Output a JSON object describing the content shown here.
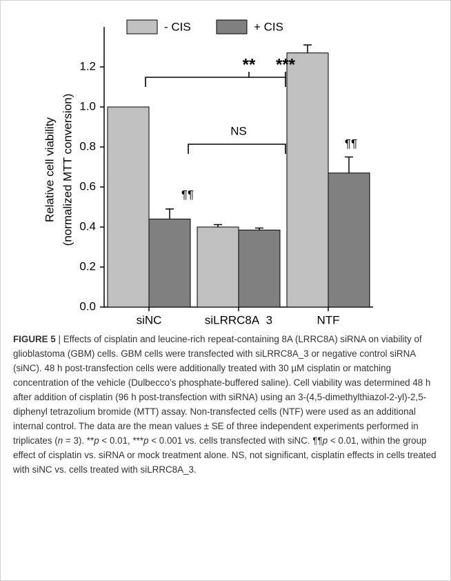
{
  "chart_data": {
    "type": "bar",
    "ylabel": [
      "Relative cell viability",
      "(normalized MTT conversion)"
    ],
    "categories": [
      "siNC",
      "siLRRC8A_3",
      "NTF"
    ],
    "series": [
      {
        "name": "- CIS",
        "color": "#c0c0c0",
        "values": [
          1.0,
          0.4,
          1.27
        ],
        "errors": [
          0,
          0.012,
          0.04
        ]
      },
      {
        "name": "+ CIS",
        "color": "#808080",
        "values": [
          0.44,
          0.385,
          0.67
        ],
        "errors": [
          0.05,
          0.01,
          0.08
        ]
      }
    ],
    "ylim": [
      0,
      1.4
    ],
    "yticks": [
      {
        "value": 0,
        "label": "0.0"
      },
      0.2,
      0.4,
      0.6,
      0.8,
      {
        "value": 1,
        "label": "1.0"
      },
      1.2
    ],
    "annotations": [
      "**",
      "***",
      "NS",
      "¶¶",
      "¶¶"
    ]
  },
  "caption": {
    "label": "FIGURE 5",
    "parts": [
      "| Effects of cisplatin and leucine-rich repeat-containing 8A (LRRC8A) siRNA on viability of glioblastoma (GBM) cells. GBM cells were transfected with siLRRC8A_3 or negative control siRNA (siNC). 48 h post-transfection cells were additionally treated with 30 µM cisplatin or matching concentration of the vehicle (Dulbecco’s phosphate-buffered saline). Cell viability was determined 48 h after addition of cisplatin (96 h post-transfection with siRNA) using an 3-(4,5-dimethylthiazol-2-yl)-2,5-diphenyl tetrazolium bromide (MTT) assay. Non-transfected cells (NTF) were used as an additional internal control. The data are the mean values ± SE of three independent experiments performed in triplicates (",
      "n",
      " = 3). **",
      "p",
      " < 0.01, ***",
      "p",
      " < 0.001 vs. cells transfected with siNC. ¶¶",
      "p",
      " < 0.01, within the group effect of cisplatin vs. siRNA or mock treatment alone. NS, not significant, cisplatin effects in cells treated with siNC vs. cells treated with siLRRC8A_3."
    ]
  }
}
